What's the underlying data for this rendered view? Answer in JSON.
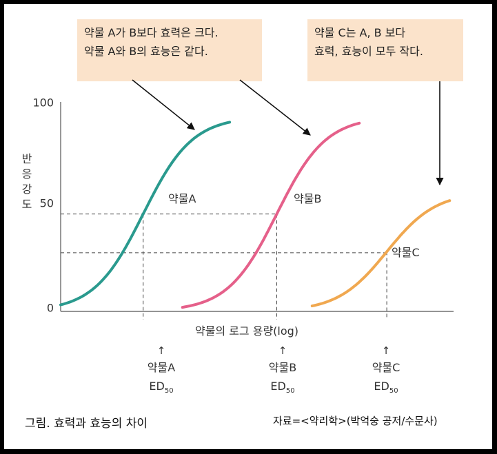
{
  "notes": {
    "top_left": {
      "line1": "약물 A가 B보다 효력은 크다.",
      "line2": "약물 A와 B의 효능은 같다."
    },
    "top_right": {
      "line1": "약물 C는 A, B 보다",
      "line2": "효력, 효능이 모두 작다."
    }
  },
  "ed_labels": [
    {
      "drug": "약물A",
      "ed": "ED",
      "sub": "50"
    },
    {
      "drug": "약물B",
      "ed": "ED",
      "sub": "50"
    },
    {
      "drug": "약물C",
      "ed": "ED",
      "sub": "50"
    }
  ],
  "arrow_glyph": "↑",
  "caption": "그림. 효력과 효능의 차이",
  "source": "자료=<약리학>(박억숭 공저/수문사)",
  "colors": {
    "drug_a": "#2a9a8e",
    "drug_b": "#e5608a",
    "drug_c": "#f0a850",
    "note_bg": "#fbe3cb"
  },
  "chart_data": {
    "type": "line",
    "title": "",
    "xlabel": "약물의 로그 용량(log)",
    "ylabel": "반응강도",
    "yticks": [
      "0",
      "50",
      "100"
    ],
    "ylim": [
      0,
      100
    ],
    "xlim": [
      0,
      10
    ],
    "series": [
      {
        "name": "약물A",
        "key": "drug_a",
        "color": "#2a9a8e",
        "ed50": 2.1,
        "emax": 93,
        "slope": 1.6,
        "x_start": 0.0,
        "x_end": 4.3,
        "label": "약물A"
      },
      {
        "name": "약물B",
        "key": "drug_b",
        "color": "#e5608a",
        "ed50": 5.5,
        "emax": 93,
        "slope": 1.6,
        "x_start": 3.1,
        "x_end": 7.6,
        "label": "약물B"
      },
      {
        "name": "약물C",
        "key": "drug_c",
        "color": "#f0a850",
        "ed50": 8.3,
        "emax": 57,
        "slope": 1.6,
        "x_start": 6.4,
        "x_end": 9.9,
        "label": "약물C"
      }
    ],
    "reference_lines": [
      {
        "axis": "y",
        "value": 46.5
      },
      {
        "axis": "y",
        "value": 28
      }
    ]
  }
}
